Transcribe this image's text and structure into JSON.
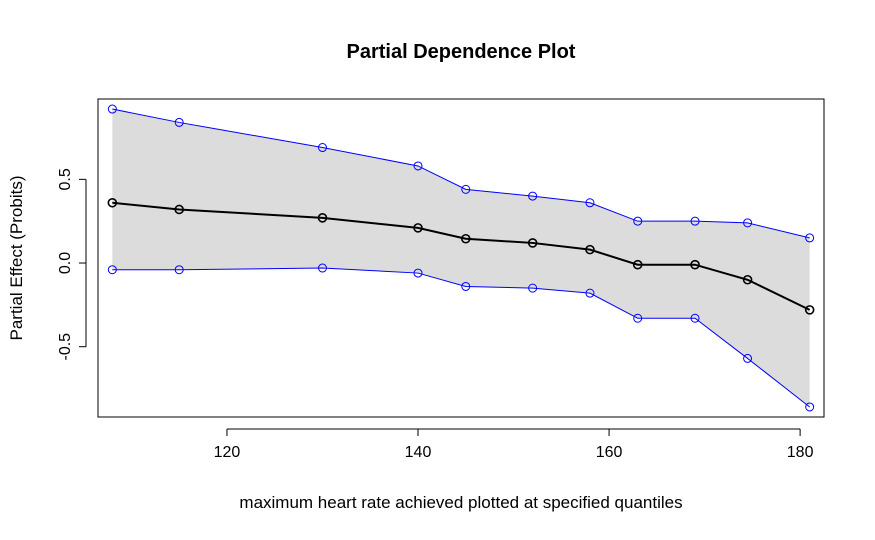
{
  "chart_data": {
    "type": "line",
    "title": "Partial Dependence Plot",
    "xlabel": "maximum heart rate achieved plotted at specified quantiles",
    "ylabel": "Partial Effect (Probits)",
    "xlim": [
      106.5,
      182.5
    ],
    "ylim": [
      -0.92,
      0.98
    ],
    "x_ticks": [
      120,
      140,
      160,
      180
    ],
    "y_ticks": [
      -0.5,
      0.0,
      0.5
    ],
    "y_tick_labels": [
      "-0.5",
      "0.0",
      "0.5"
    ],
    "grid": false,
    "legend": "none",
    "x": [
      108,
      115,
      130,
      140,
      145,
      152,
      158,
      163,
      169,
      174.5,
      181
    ],
    "series": [
      {
        "role": "estimate",
        "color": "#000000",
        "values": [
          0.36,
          0.32,
          0.27,
          0.21,
          0.145,
          0.12,
          0.08,
          -0.01,
          -0.01,
          -0.1,
          -0.28
        ]
      },
      {
        "role": "upper",
        "color": "#0000ff",
        "values": [
          0.92,
          0.84,
          0.69,
          0.58,
          0.44,
          0.4,
          0.36,
          0.25,
          0.25,
          0.24,
          0.15
        ]
      },
      {
        "role": "lower",
        "color": "#0000ff",
        "values": [
          -0.04,
          -0.04,
          -0.03,
          -0.06,
          -0.14,
          -0.15,
          -0.18,
          -0.33,
          -0.33,
          -0.57,
          -0.86
        ]
      }
    ],
    "band_color": "#dcdcdc"
  }
}
